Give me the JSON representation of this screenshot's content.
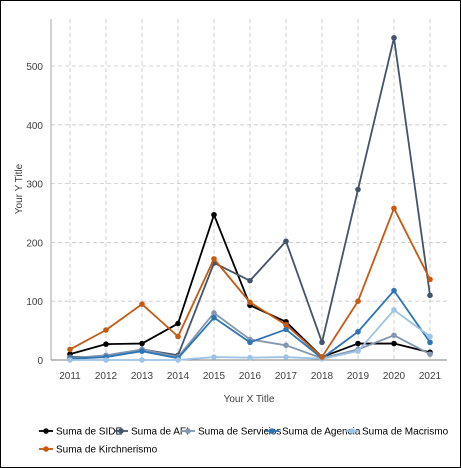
{
  "chart_data": {
    "type": "line",
    "title": "",
    "xlabel": "Your X Title",
    "ylabel": "Your Y Title",
    "ylim": [
      0,
      580
    ],
    "y_ticks": [
      0,
      100,
      200,
      300,
      400,
      500
    ],
    "categories": [
      "2011",
      "2012",
      "2013",
      "2014",
      "2015",
      "2016",
      "2017",
      "2018",
      "2019",
      "2020",
      "2021"
    ],
    "grid": "dashed",
    "legend_position": "bottom",
    "series": [
      {
        "name": "Suma de SIDE",
        "color": "#000000",
        "values": [
          10,
          27,
          28,
          62,
          247,
          93,
          65,
          5,
          28,
          28,
          13
        ]
      },
      {
        "name": "Suma de AFI",
        "color": "#44546a",
        "values": [
          5,
          5,
          18,
          8,
          165,
          135,
          202,
          30,
          290,
          548,
          110
        ]
      },
      {
        "name": "Suma de Servicios",
        "color": "#8497b0",
        "values": [
          3,
          8,
          18,
          5,
          80,
          35,
          25,
          3,
          18,
          42,
          10
        ]
      },
      {
        "name": "Suma de Agencia",
        "color": "#2e75b6",
        "values": [
          2,
          5,
          15,
          3,
          72,
          30,
          52,
          3,
          48,
          118,
          30
        ]
      },
      {
        "name": "Suma de Macrismo",
        "color": "#9dc3e6",
        "values": [
          0,
          0,
          0,
          0,
          5,
          4,
          5,
          2,
          15,
          85,
          40
        ]
      },
      {
        "name": "Suma de Kirchnerismo",
        "color": "#c55a11",
        "values": [
          18,
          51,
          95,
          40,
          172,
          98,
          60,
          5,
          100,
          258,
          137
        ]
      }
    ]
  }
}
